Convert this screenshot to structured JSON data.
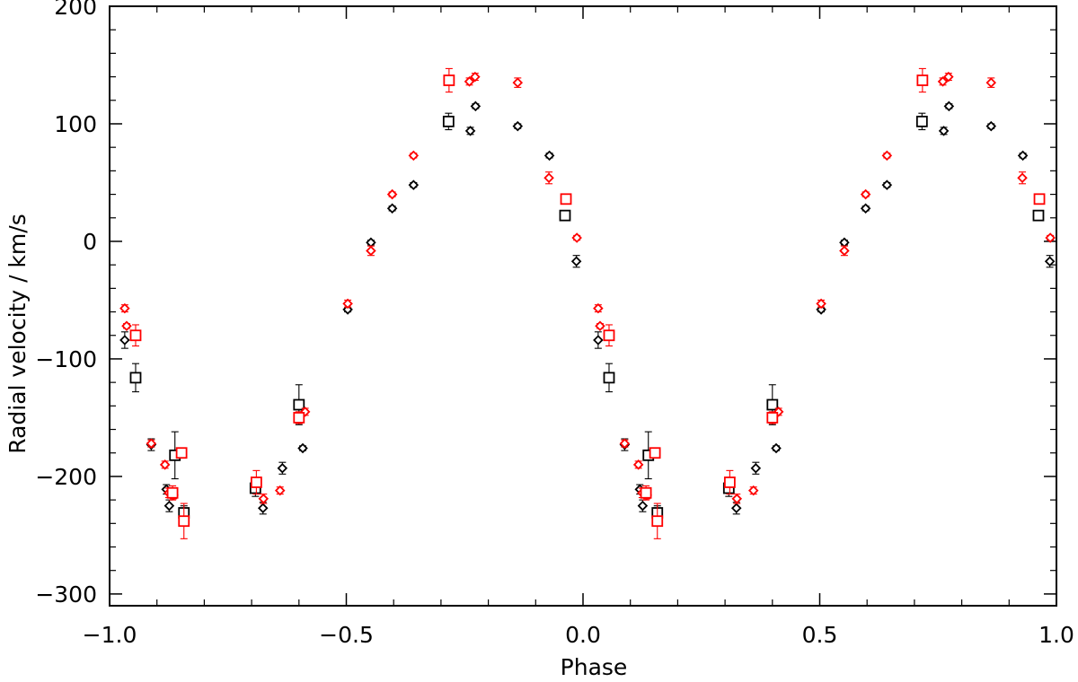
{
  "chart_data": {
    "type": "scatter",
    "xlabel": "Phase",
    "ylabel": "Radial velocity / km/s",
    "xlim": [
      -1.0,
      1.0
    ],
    "ylim": [
      -310,
      200
    ],
    "x_ticks": [
      -1.0,
      -0.5,
      0.0,
      0.5,
      1.0
    ],
    "x_tick_labels": [
      "−1.0",
      "−0.5",
      "0.0",
      "0.5",
      "1.0"
    ],
    "y_ticks": [
      -300,
      -200,
      -100,
      0,
      100,
      200
    ],
    "y_tick_labels": [
      "−300",
      "−200",
      "−100",
      "0",
      "100",
      "200"
    ],
    "grid": false,
    "series": [
      {
        "color": "#000000",
        "marker": "diamond",
        "points": [
          {
            "x": -0.968,
            "y": -84,
            "err": 7
          },
          {
            "x": -0.912,
            "y": -173,
            "err": 5
          },
          {
            "x": -0.88,
            "y": -211,
            "err": 4
          },
          {
            "x": -0.874,
            "y": -225,
            "err": 5
          },
          {
            "x": -0.676,
            "y": -227,
            "err": 5
          },
          {
            "x": -0.635,
            "y": -193,
            "err": 5
          },
          {
            "x": -0.592,
            "y": -176,
            "err": 2
          },
          {
            "x": -0.497,
            "y": -58,
            "err": 2
          },
          {
            "x": -0.448,
            "y": -1,
            "err": 2
          },
          {
            "x": -0.403,
            "y": 28,
            "err": 2
          },
          {
            "x": -0.358,
            "y": 48,
            "err": 2
          },
          {
            "x": -0.238,
            "y": 94,
            "err": 3
          },
          {
            "x": -0.227,
            "y": 115,
            "err": 2
          },
          {
            "x": -0.138,
            "y": 98,
            "err": 2
          },
          {
            "x": -0.071,
            "y": 73,
            "err": 2
          },
          {
            "x": -0.014,
            "y": -17,
            "err": 5
          },
          {
            "x": 0.032,
            "y": -84,
            "err": 7
          },
          {
            "x": 0.088,
            "y": -173,
            "err": 5
          },
          {
            "x": 0.12,
            "y": -211,
            "err": 4
          },
          {
            "x": 0.126,
            "y": -225,
            "err": 5
          },
          {
            "x": 0.324,
            "y": -227,
            "err": 5
          },
          {
            "x": 0.365,
            "y": -193,
            "err": 5
          },
          {
            "x": 0.408,
            "y": -176,
            "err": 2
          },
          {
            "x": 0.503,
            "y": -58,
            "err": 2
          },
          {
            "x": 0.552,
            "y": -1,
            "err": 2
          },
          {
            "x": 0.597,
            "y": 28,
            "err": 2
          },
          {
            "x": 0.642,
            "y": 48,
            "err": 2
          },
          {
            "x": 0.762,
            "y": 94,
            "err": 3
          },
          {
            "x": 0.773,
            "y": 115,
            "err": 2
          },
          {
            "x": 0.862,
            "y": 98,
            "err": 2
          },
          {
            "x": 0.929,
            "y": 73,
            "err": 2
          },
          {
            "x": 0.986,
            "y": -17,
            "err": 5
          }
        ]
      },
      {
        "color": "#000000",
        "marker": "square",
        "points": [
          {
            "x": -0.945,
            "y": -116,
            "err": 12
          },
          {
            "x": -0.862,
            "y": -182,
            "err": 20
          },
          {
            "x": -0.843,
            "y": -231,
            "err": 6
          },
          {
            "x": -0.692,
            "y": -210,
            "err": 7
          },
          {
            "x": -0.6,
            "y": -139,
            "err": 17
          },
          {
            "x": -0.284,
            "y": 102,
            "err": 7
          },
          {
            "x": -0.038,
            "y": 22,
            "err": 3
          },
          {
            "x": 0.055,
            "y": -116,
            "err": 12
          },
          {
            "x": 0.138,
            "y": -182,
            "err": 20
          },
          {
            "x": 0.157,
            "y": -231,
            "err": 6
          },
          {
            "x": 0.308,
            "y": -210,
            "err": 7
          },
          {
            "x": 0.4,
            "y": -139,
            "err": 17
          },
          {
            "x": 0.716,
            "y": 102,
            "err": 7
          },
          {
            "x": 0.962,
            "y": 22,
            "err": 3
          }
        ]
      },
      {
        "color": "#ff0000",
        "marker": "diamond",
        "points": [
          {
            "x": -0.968,
            "y": -57,
            "err": 3
          },
          {
            "x": -0.964,
            "y": -72,
            "err": 2
          },
          {
            "x": -0.912,
            "y": -172,
            "err": 3
          },
          {
            "x": -0.883,
            "y": -190,
            "err": 3
          },
          {
            "x": -0.875,
            "y": -214,
            "err": 4
          },
          {
            "x": -0.865,
            "y": -216,
            "err": 3
          },
          {
            "x": -0.675,
            "y": -219,
            "err": 4
          },
          {
            "x": -0.64,
            "y": -212,
            "err": 3
          },
          {
            "x": -0.587,
            "y": -145,
            "err": 3
          },
          {
            "x": -0.497,
            "y": -53,
            "err": 3
          },
          {
            "x": -0.448,
            "y": -8,
            "err": 4
          },
          {
            "x": -0.403,
            "y": 40,
            "err": 2
          },
          {
            "x": -0.358,
            "y": 73,
            "err": 2
          },
          {
            "x": -0.24,
            "y": 136,
            "err": 3
          },
          {
            "x": -0.228,
            "y": 140,
            "err": 3
          },
          {
            "x": -0.138,
            "y": 135,
            "err": 4
          },
          {
            "x": -0.072,
            "y": 54,
            "err": 5
          },
          {
            "x": -0.013,
            "y": 3,
            "err": 2
          },
          {
            "x": 0.032,
            "y": -57,
            "err": 3
          },
          {
            "x": 0.036,
            "y": -72,
            "err": 2
          },
          {
            "x": 0.088,
            "y": -172,
            "err": 3
          },
          {
            "x": 0.117,
            "y": -190,
            "err": 3
          },
          {
            "x": 0.125,
            "y": -214,
            "err": 4
          },
          {
            "x": 0.135,
            "y": -216,
            "err": 3
          },
          {
            "x": 0.325,
            "y": -219,
            "err": 4
          },
          {
            "x": 0.36,
            "y": -212,
            "err": 3
          },
          {
            "x": 0.413,
            "y": -145,
            "err": 3
          },
          {
            "x": 0.503,
            "y": -53,
            "err": 3
          },
          {
            "x": 0.552,
            "y": -8,
            "err": 4
          },
          {
            "x": 0.597,
            "y": 40,
            "err": 2
          },
          {
            "x": 0.642,
            "y": 73,
            "err": 2
          },
          {
            "x": 0.76,
            "y": 136,
            "err": 3
          },
          {
            "x": 0.772,
            "y": 140,
            "err": 3
          },
          {
            "x": 0.862,
            "y": 135,
            "err": 4
          },
          {
            "x": 0.928,
            "y": 54,
            "err": 5
          },
          {
            "x": 0.987,
            "y": 3,
            "err": 2
          }
        ]
      },
      {
        "color": "#ff0000",
        "marker": "square",
        "points": [
          {
            "x": -0.945,
            "y": -80,
            "err": 9
          },
          {
            "x": -0.867,
            "y": -214,
            "err": 6
          },
          {
            "x": -0.848,
            "y": -180,
            "err": 4
          },
          {
            "x": -0.843,
            "y": -238,
            "err": 15
          },
          {
            "x": -0.69,
            "y": -205,
            "err": 10
          },
          {
            "x": -0.6,
            "y": -150,
            "err": 5
          },
          {
            "x": -0.283,
            "y": 137,
            "err": 10
          },
          {
            "x": -0.036,
            "y": 36,
            "err": 3
          },
          {
            "x": 0.055,
            "y": -80,
            "err": 9
          },
          {
            "x": 0.133,
            "y": -214,
            "err": 6
          },
          {
            "x": 0.152,
            "y": -180,
            "err": 4
          },
          {
            "x": 0.157,
            "y": -238,
            "err": 15
          },
          {
            "x": 0.31,
            "y": -205,
            "err": 10
          },
          {
            "x": 0.4,
            "y": -150,
            "err": 5
          },
          {
            "x": 0.717,
            "y": 137,
            "err": 10
          },
          {
            "x": 0.964,
            "y": 36,
            "err": 3
          }
        ]
      }
    ]
  }
}
